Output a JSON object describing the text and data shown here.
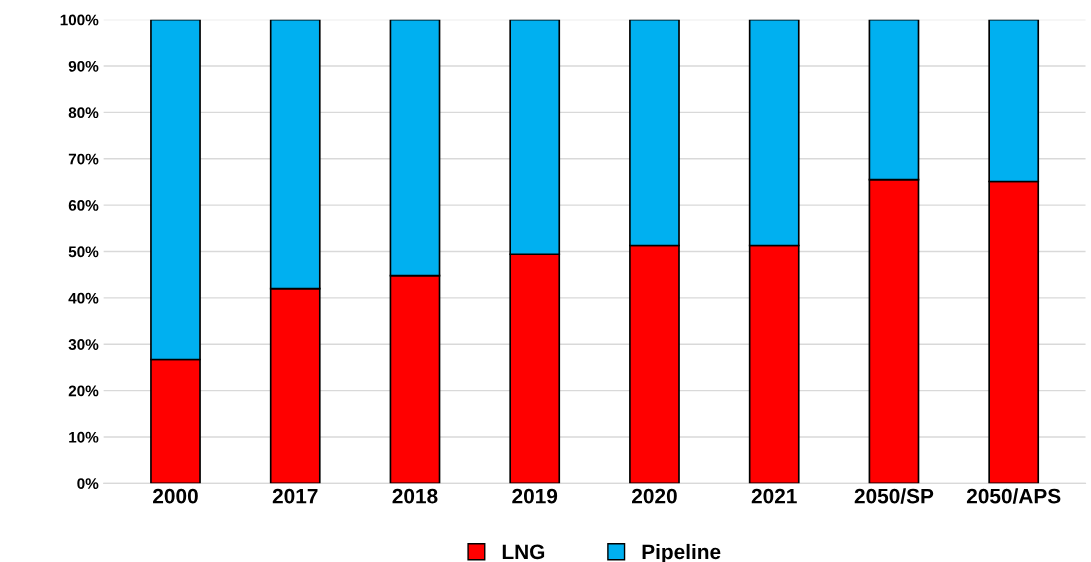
{
  "chart_data": {
    "type": "bar",
    "stacked": true,
    "categories": [
      "2000",
      "2017",
      "2018",
      "2019",
      "2020",
      "2021",
      "2050/SP",
      "2050/APS"
    ],
    "series": [
      {
        "name": "LNG",
        "color": "#ff0000",
        "values": [
          26.7,
          42.0,
          44.8,
          49.4,
          51.3,
          51.3,
          65.5,
          65.1
        ]
      },
      {
        "name": "Pipeline",
        "color": "#00b0f0",
        "values": [
          73.3,
          58.0,
          55.2,
          50.6,
          48.7,
          48.7,
          34.5,
          34.9
        ]
      }
    ],
    "ylim": [
      0,
      100
    ],
    "yticks": [
      {
        "value": 0,
        "label": "0%"
      },
      {
        "value": 10,
        "label": "10%"
      },
      {
        "value": 20,
        "label": "20%"
      },
      {
        "value": 30,
        "label": "30%"
      },
      {
        "value": 40,
        "label": "40%"
      },
      {
        "value": 50,
        "label": "50%"
      },
      {
        "value": 60,
        "label": "60%"
      },
      {
        "value": 70,
        "label": "70%"
      },
      {
        "value": 80,
        "label": "80%"
      },
      {
        "value": 90,
        "label": "90%"
      },
      {
        "value": 100,
        "label": "100%"
      }
    ],
    "grid": "y",
    "legend": "bottom"
  }
}
